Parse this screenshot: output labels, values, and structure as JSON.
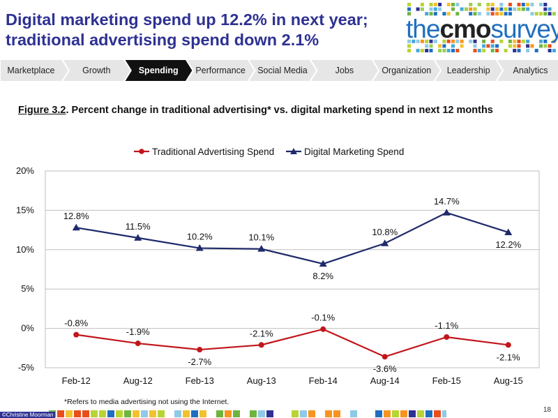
{
  "slide": {
    "title": "Digital marketing spend up 12.2% in next year; traditional advertising spend down 2.1%",
    "page_number": "18",
    "footnote": "*Refers to media advertising not using the Internet.",
    "copyright": "©Christine Moorman"
  },
  "logo": {
    "part1": "the",
    "part2": "cmo",
    "part3": "survey"
  },
  "nav": {
    "items": [
      {
        "label": "Marketplace",
        "active": false
      },
      {
        "label": "Growth",
        "active": false
      },
      {
        "label": "Spending",
        "active": true
      },
      {
        "label": "Performance",
        "active": false
      },
      {
        "label": "Social Media",
        "active": false
      },
      {
        "label": "Jobs",
        "active": false
      },
      {
        "label": "Organization",
        "active": false
      },
      {
        "label": "Leadership",
        "active": false
      },
      {
        "label": "Analytics",
        "active": false
      }
    ],
    "colors": {
      "inactive": "#e6e6e6",
      "active": "#111111"
    }
  },
  "figure": {
    "number": "Figure 3.2",
    "caption": ".  Percent change in traditional advertising* vs. digital marketing spend in next 12 months"
  },
  "chart_data": {
    "type": "line",
    "categories": [
      "Feb-12",
      "Aug-12",
      "Feb-13",
      "Aug-13",
      "Feb-14",
      "Aug-14",
      "Feb-15",
      "Aug-15"
    ],
    "series": [
      {
        "name": "Traditional Advertising Spend",
        "color": "#c0161b",
        "marker": "circle",
        "values": [
          -0.8,
          -1.9,
          -2.7,
          -2.1,
          -0.1,
          -3.6,
          -1.1,
          -2.1
        ],
        "labels": [
          "-0.8%",
          "-1.9%",
          "-2.7%",
          "-2.1%",
          "-0.1%",
          "-3.6%",
          "-1.1%",
          "-2.1%"
        ]
      },
      {
        "name": "Digital Marketing Spend",
        "color": "#1f2a6b",
        "marker": "triangle",
        "values": [
          12.8,
          11.5,
          10.2,
          10.1,
          8.2,
          10.8,
          14.7,
          12.2
        ],
        "labels": [
          "12.8%",
          "11.5%",
          "10.2%",
          "10.1%",
          "8.2%",
          "10.8%",
          "14.7%",
          "12.2%"
        ]
      }
    ],
    "y_ticks": [
      "-5%",
      "0%",
      "5%",
      "10%",
      "15%",
      "20%"
    ],
    "ylim": [
      -5,
      20
    ],
    "grid": true,
    "legend": "top",
    "xlabel": "",
    "ylabel": ""
  }
}
